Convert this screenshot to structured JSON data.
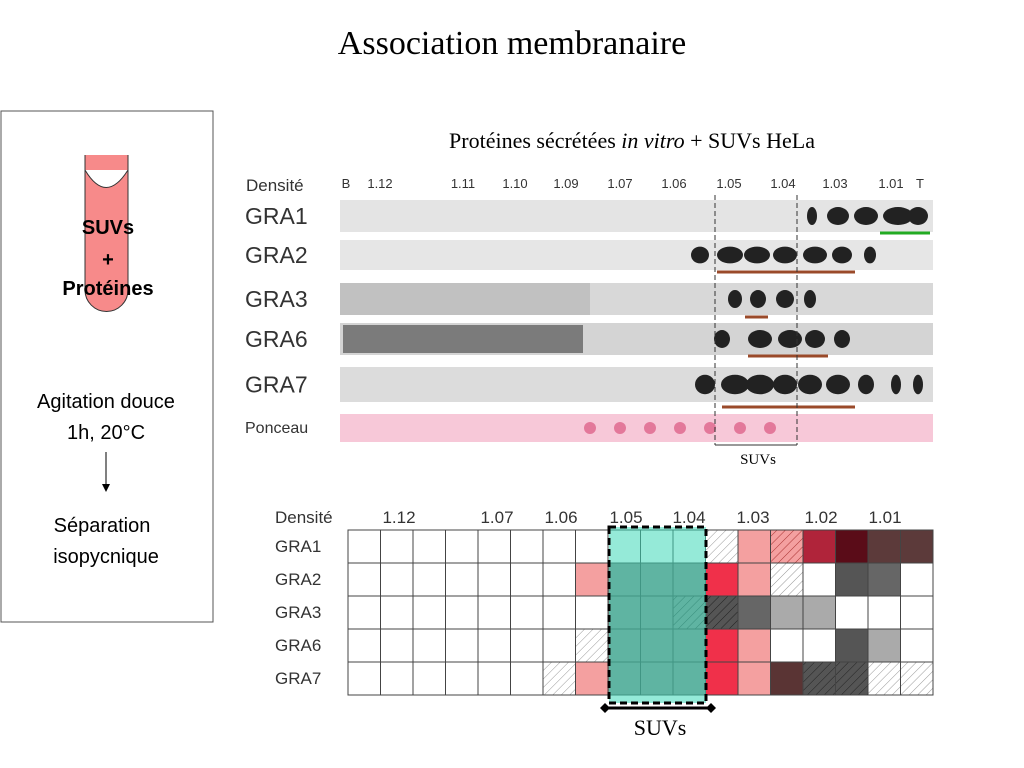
{
  "title": "Association membranaire",
  "protocol": {
    "tube": [
      "SUVs",
      "+",
      "Protéines"
    ],
    "step1": [
      "Agitation douce",
      "1h, 20°C"
    ],
    "step2": [
      "Séparation",
      "isopycnique"
    ]
  },
  "blot": {
    "subtitle": [
      "Protéines sécrétées ",
      "in vitro",
      " + SUVs HeLa"
    ],
    "density_label": "Densité",
    "densities": [
      "B",
      "1.12",
      "1.11",
      "1.10",
      "1.09",
      "1.07",
      "1.06",
      "1.05",
      "1.04",
      "1.03",
      "1.01",
      "T"
    ],
    "rows": [
      "GRA1",
      "GRA2",
      "GRA3",
      "GRA6",
      "GRA7",
      "Ponceau"
    ],
    "fraction_label": "SUVs"
  },
  "grid": {
    "density_label": "Densité",
    "densities": [
      "1.12",
      "1.07",
      "1.06",
      "1.05",
      "1.04",
      "1.03",
      "1.02",
      "1.01"
    ],
    "rows": [
      {
        "name": "GRA1",
        "cells": [
          "#fff",
          "#fff",
          "#fff",
          "#fff",
          "#fff",
          "#fff",
          "#fff",
          "#fff",
          "#fff",
          "#fff",
          "#fff",
          "hatch",
          "#f4a0a0",
          "hatch-pink",
          "#b0243a",
          "#5a0c18",
          "#5c3a3a",
          "#5c3a3a"
        ]
      },
      {
        "name": "GRA2",
        "cells": [
          "#fff",
          "#fff",
          "#fff",
          "#fff",
          "#fff",
          "#fff",
          "#fff",
          "#f4a0a0",
          "#888",
          "#888",
          "#888",
          "#f0304a",
          "#f4a0a0",
          "hatch",
          "#fff",
          "#555",
          "#666",
          "#fff"
        ]
      },
      {
        "name": "GRA3",
        "cells": [
          "#fff",
          "#fff",
          "#fff",
          "#fff",
          "#fff",
          "#fff",
          "#fff",
          "#fff",
          "#888",
          "#888",
          "hatch-grey",
          "hatch-dark",
          "#666",
          "#aaa",
          "#aaa",
          "#fff",
          "#fff",
          "#fff"
        ]
      },
      {
        "name": "GRA6",
        "cells": [
          "#fff",
          "#fff",
          "#fff",
          "#fff",
          "#fff",
          "#fff",
          "#fff",
          "hatch",
          "#888",
          "#888",
          "#888",
          "#f0304a",
          "#f4a0a0",
          "#fff",
          "#fff",
          "#555",
          "#aaa",
          "#fff"
        ]
      },
      {
        "name": "GRA7",
        "cells": [
          "#fff",
          "#fff",
          "#fff",
          "#fff",
          "#fff",
          "#fff",
          "hatch",
          "#f4a0a0",
          "#888",
          "#888",
          "#888",
          "#f0304a",
          "#f4a0a0",
          "#5a3434",
          "hatch-dark",
          "hatch-dark",
          "hatch",
          "hatch"
        ]
      }
    ],
    "fraction_label": "SUVs"
  }
}
